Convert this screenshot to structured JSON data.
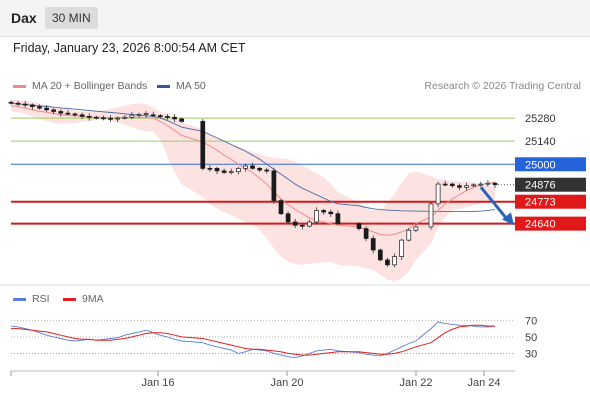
{
  "header": {
    "symbol": "Dax",
    "timeframe": "30 MIN"
  },
  "datetime": "Friday, January 23, 2026 8:00:54 AM CET",
  "legend": {
    "ma20_label": "MA 20 + Bollinger Bands",
    "ma50_label": "MA 50",
    "ma20_color": "#f08a8a",
    "ma50_color": "#4a6aa0"
  },
  "copyright": "Research © 2026 Trading Central",
  "rsi_legend": {
    "rsi_label": "RSI",
    "ma_label": "9MA",
    "rsi_color": "#5b7fd6",
    "ma_color": "#e02020"
  },
  "chart_data": [
    {
      "type": "candlestick",
      "x_labels": [
        "Jan 16",
        "Jan 20",
        "Jan 22",
        "Jan 24"
      ],
      "ylim": [
        24280,
        25420
      ],
      "price_lines": [
        {
          "label": "25280",
          "value": 25280,
          "kind": "resistance"
        },
        {
          "label": "25140",
          "value": 25140,
          "kind": "resistance"
        },
        {
          "label": "25000",
          "value": 25000,
          "kind": "pivot"
        },
        {
          "label": "24876",
          "value": 24876,
          "kind": "last"
        },
        {
          "label": "24773",
          "value": 24773,
          "kind": "support"
        },
        {
          "label": "24640",
          "value": 24640,
          "kind": "support"
        }
      ],
      "close_series": [
        25370,
        25365,
        25360,
        25350,
        25340,
        25330,
        25320,
        25310,
        25305,
        25300,
        25290,
        25285,
        25282,
        25278,
        25276,
        25280,
        25285,
        25298,
        25303,
        25300,
        25295,
        25290,
        25285,
        25275,
        25260,
        24975,
        24975,
        24960,
        24950,
        24955,
        24975,
        24990,
        24975,
        24965,
        24960,
        24780,
        24700,
        24650,
        24630,
        24625,
        24650,
        24720,
        24710,
        24700,
        24640,
        24610,
        24550,
        24480,
        24420,
        24390,
        24440,
        24540,
        24600,
        24620,
        24760,
        24880,
        24880,
        24870,
        24860,
        24870,
        24875,
        24880,
        24885,
        24876
      ],
      "ma20": [
        25355,
        25350,
        25340,
        25330,
        25322,
        25315,
        25308,
        25300,
        25298,
        25294,
        25290,
        25288,
        25285,
        25283,
        25283,
        25283,
        25284,
        25285,
        25285,
        25283,
        25280,
        25260,
        25235,
        25205,
        25175,
        25135,
        25110,
        25085,
        25055,
        25030,
        25000,
        24975,
        24950,
        24915,
        24880,
        24830,
        24790,
        24755,
        24725,
        24700,
        24675,
        24660,
        24650,
        24640,
        24630,
        24620,
        24605,
        24590,
        24575,
        24570,
        24575,
        24590,
        24610,
        24640,
        24680,
        24720,
        24760,
        24790,
        24815,
        24840,
        24860,
        24875,
        24885,
        24890
      ],
      "boll_upper": [
        25390,
        25390,
        25385,
        25378,
        25370,
        25360,
        25350,
        25340,
        25332,
        25325,
        25320,
        25320,
        25322,
        25328,
        25335,
        25345,
        25355,
        25365,
        25370,
        25365,
        25345,
        25320,
        25300,
        25285,
        25255,
        25210,
        25180,
        25155,
        25135,
        25120,
        25105,
        25090,
        25075,
        25060,
        25045,
        25040,
        25035,
        25030,
        25015,
        24995,
        24970,
        24945,
        24920,
        24880,
        24830,
        24770,
        24730,
        24720,
        24725,
        24760,
        24820,
        24890,
        24945,
        24955,
        24930,
        24910,
        24905,
        24900,
        24895,
        24895,
        24890,
        24880,
        24870,
        24860
      ],
      "boll_lower": [
        25320,
        25315,
        25305,
        25290,
        25275,
        25262,
        25252,
        25246,
        25246,
        25250,
        25256,
        25262,
        25268,
        25270,
        25265,
        25255,
        25240,
        25225,
        25210,
        25200,
        25200,
        25150,
        25050,
        24950,
        24880,
        24800,
        24760,
        24730,
        24710,
        24690,
        24670,
        24650,
        24630,
        24600,
        24550,
        24490,
        24440,
        24410,
        24395,
        24390,
        24395,
        24400,
        24405,
        24410,
        24390,
        24380,
        24370,
        24360,
        24330,
        24300,
        24290,
        24310,
        24350,
        24420,
        24520,
        24620,
        24680,
        24720,
        24730,
        24740,
        24750,
        24765,
        24775,
        24790
      ],
      "ma50": [
        25370,
        25365,
        25362,
        25358,
        25354,
        25350,
        25346,
        25342,
        25338,
        25334,
        25330,
        25326,
        25322,
        25318,
        25314,
        25310,
        25306,
        25302,
        25298,
        25294,
        25290,
        25280,
        25265,
        25245,
        25225,
        25200,
        25180,
        25160,
        25140,
        25120,
        25100,
        25080,
        25055,
        25030,
        25000,
        24970,
        24940,
        24910,
        24880,
        24855,
        24835,
        24815,
        24795,
        24775,
        24760,
        24748,
        24738,
        24730,
        24725,
        24722,
        24720,
        24718,
        24717,
        24716,
        24715,
        24714,
        24713,
        24713,
        24713,
        24713,
        24714,
        24716,
        24720,
        24725
      ],
      "projection_arrow": {
        "from": 24860,
        "to": 24660
      }
    },
    {
      "type": "line",
      "title": "RSI",
      "ylim": [
        10,
        80
      ],
      "yticks": [
        "70",
        "50",
        "30"
      ],
      "rsi": [
        63,
        62,
        60,
        58,
        55,
        52,
        50,
        48,
        46,
        45,
        46,
        47,
        46,
        47,
        48,
        49,
        52,
        54,
        56,
        58,
        55,
        52,
        50,
        47,
        45,
        43,
        40,
        38,
        36,
        34,
        30,
        32,
        35,
        34,
        33,
        30,
        28,
        26,
        25,
        27,
        30,
        33,
        34,
        35,
        33,
        31,
        29,
        28,
        27,
        30,
        34,
        38,
        42,
        45,
        60,
        68,
        66,
        65,
        64,
        64,
        63,
        62,
        62,
        63
      ],
      "rsi_ma": [
        60,
        60,
        59,
        58,
        57,
        56,
        54,
        52,
        50,
        48,
        47,
        47,
        46,
        46,
        46,
        47,
        48,
        50,
        52,
        54,
        55,
        55,
        54,
        52,
        50,
        48,
        46,
        44,
        42,
        40,
        38,
        36,
        35,
        35,
        34,
        33,
        32,
        30,
        29,
        28,
        28,
        29,
        30,
        31,
        32,
        32,
        31,
        30,
        29,
        29,
        30,
        32,
        35,
        38,
        43,
        49,
        55,
        59,
        62,
        63,
        64,
        64,
        63,
        63
      ]
    }
  ]
}
